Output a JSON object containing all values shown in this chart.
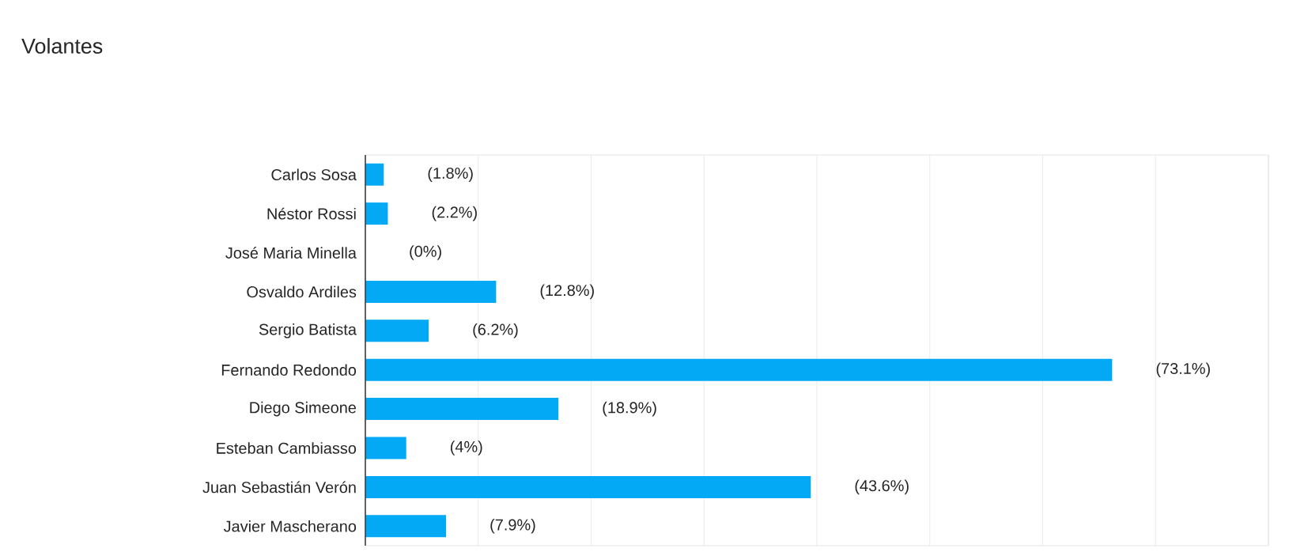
{
  "chart_data": {
    "type": "bar",
    "orientation": "horizontal",
    "title": "Volantes",
    "categories": [
      "Carlos Sosa",
      "Néstor Rossi",
      "José Maria Minella",
      "Osvaldo Ardiles",
      "Sergio Batista",
      "Fernando Redondo",
      "Diego Simeone",
      "Esteban Cambiasso",
      "Juan Sebastián Verón",
      "Javier Mascherano"
    ],
    "values": [
      1.8,
      2.2,
      0,
      12.8,
      6.2,
      73.1,
      18.9,
      4,
      43.6,
      7.9
    ],
    "value_labels": [
      "(1.8%)",
      "(2.2%)",
      "(0%)",
      "(12.8%)",
      "(6.2%)",
      "(73.1%)",
      "(18.9%)",
      "(4%)",
      "(43.6%)",
      "(7.9%)"
    ],
    "color": "#03a9f4",
    "xlim": [
      0,
      88.4
    ],
    "xticks": [
      {
        "value": 0,
        "label": null
      },
      {
        "value": 11.05,
        "label": null
      },
      {
        "value": 22.1,
        "label": null
      },
      {
        "value": 33.15,
        "label": null
      },
      {
        "value": 44.2,
        "label": null
      },
      {
        "value": 55.25,
        "label": null
      },
      {
        "value": 66.3,
        "label": null
      },
      {
        "value": 77.35,
        "label": null
      },
      {
        "value": 88.4,
        "label": null
      }
    ],
    "grid": "x",
    "tick_labels": "y"
  }
}
